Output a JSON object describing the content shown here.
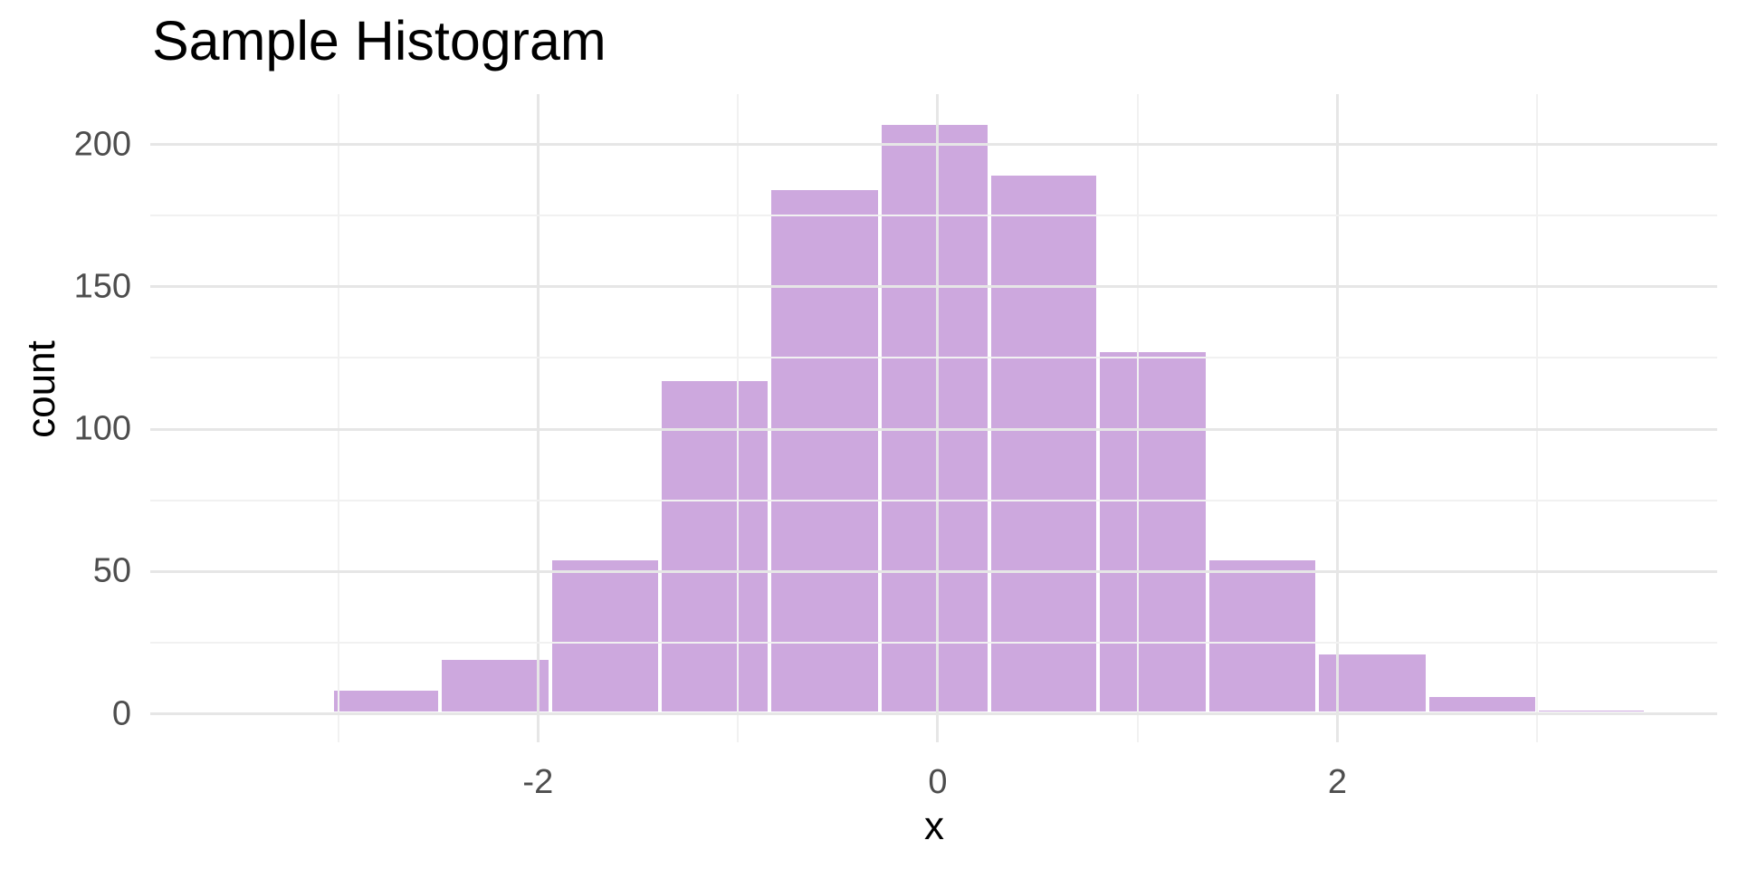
{
  "title": "Sample Histogram",
  "colors": {
    "background": "#FFFFFF",
    "bar_fill": "#CDA8DE",
    "grid_major": "#E6E6E6",
    "grid_minor": "#F1F1F1",
    "tick_text": "#4D4D4D",
    "title_text": "#000000"
  },
  "chart_data": {
    "type": "bar",
    "subtype": "histogram",
    "title": "Sample Histogram",
    "xlabel": "x",
    "ylabel": "count",
    "bin_edges": [
      -3.58,
      -3.03,
      -2.49,
      -1.94,
      -1.39,
      -0.84,
      -0.29,
      0.26,
      0.8,
      1.35,
      1.9,
      2.45,
      3.0,
      3.54
    ],
    "counts": [
      0,
      8,
      19,
      54,
      117,
      184,
      207,
      189,
      127,
      54,
      21,
      6,
      1
    ],
    "x_ticks_major": [
      -2,
      0,
      2
    ],
    "x_tick_labels": [
      "-2",
      "0",
      "2"
    ],
    "x_ticks_minor": [
      -3,
      -1,
      1,
      3
    ],
    "y_ticks_major": [
      0,
      50,
      100,
      150,
      200
    ],
    "y_tick_labels": [
      "0",
      "50",
      "100",
      "150",
      "200"
    ],
    "y_ticks_minor": [
      25,
      75,
      125,
      175
    ],
    "xlim": [
      -3.94,
      3.9
    ],
    "ylim": [
      -10.0,
      217.7
    ],
    "grid": true,
    "legend_position": "none",
    "bar_color": "#CDA8DE"
  }
}
